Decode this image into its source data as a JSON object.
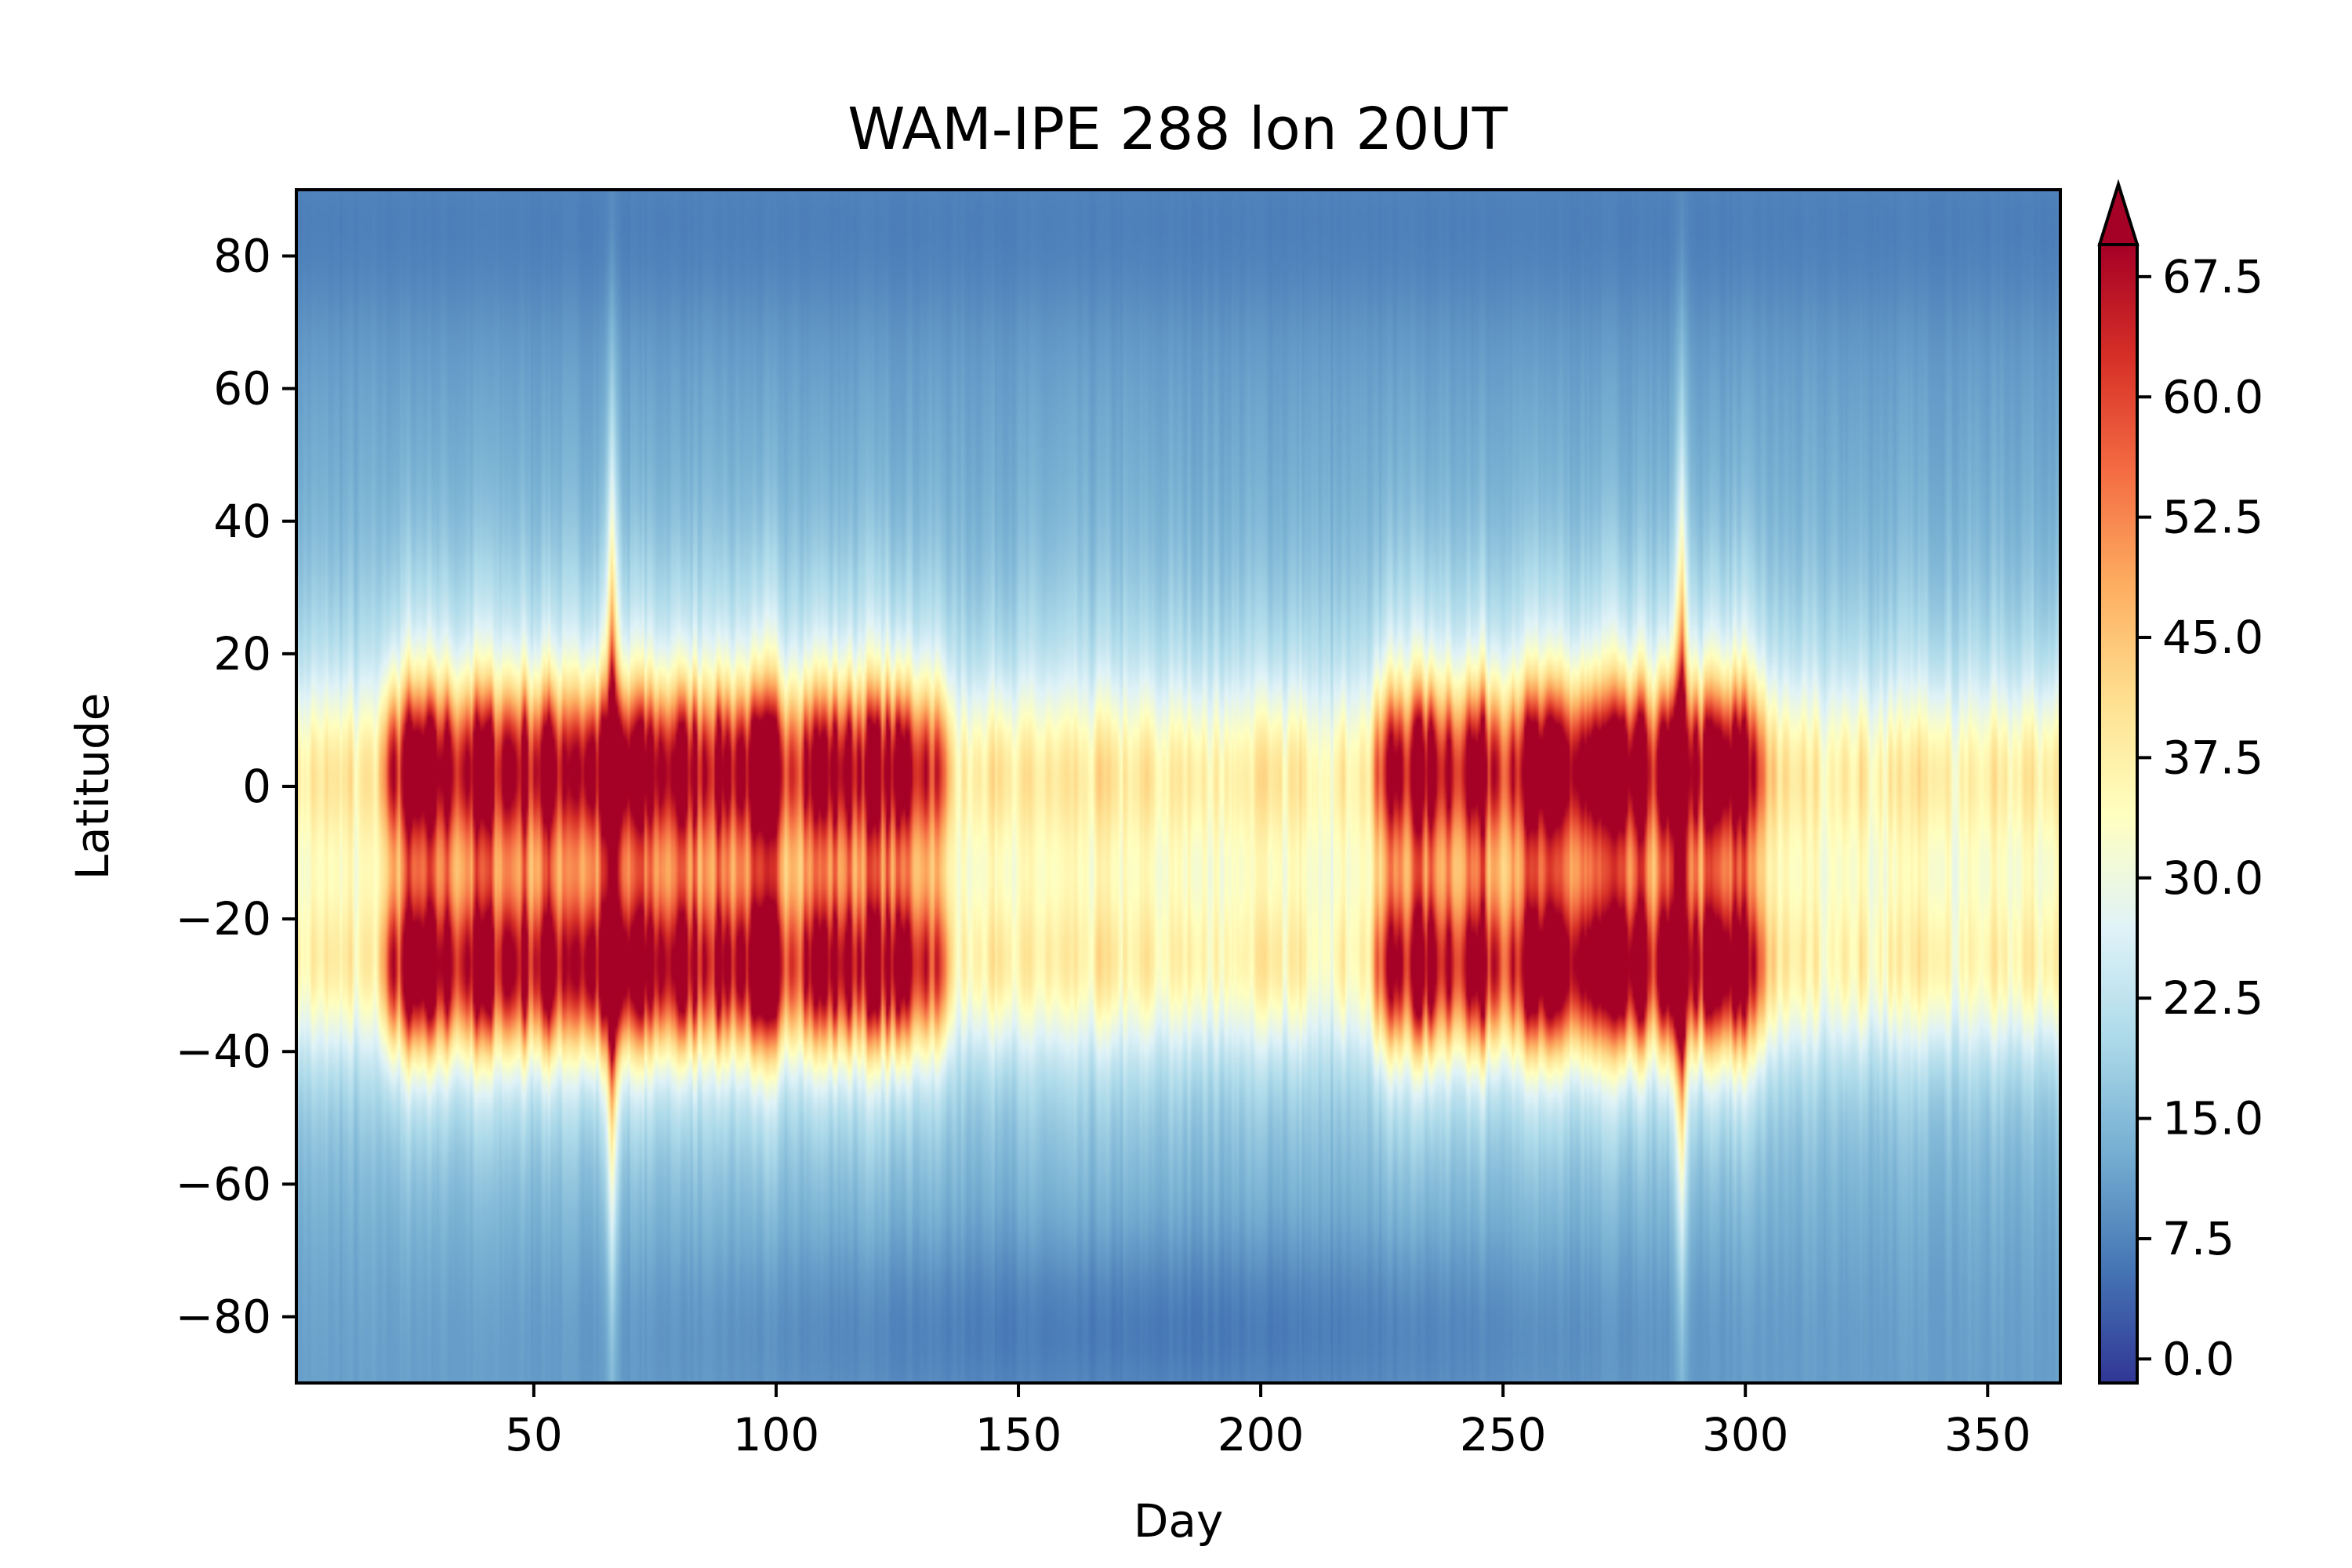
{
  "chart_data": {
    "type": "heatmap",
    "title": "WAM-IPE 288 lon 20UT",
    "xlabel": "Day",
    "ylabel": "Latitude",
    "xlim": [
      1,
      365
    ],
    "ylim": [
      -90,
      90
    ],
    "x_ticks": [
      50,
      100,
      150,
      200,
      250,
      300,
      350
    ],
    "x_tick_labels": [
      "50",
      "100",
      "150",
      "200",
      "250",
      "300",
      "350"
    ],
    "y_ticks": [
      80,
      60,
      40,
      20,
      0,
      -20,
      -40,
      -60,
      -80
    ],
    "y_tick_labels": [
      "80",
      "60",
      "40",
      "20",
      "0",
      "−20",
      "−40",
      "−60",
      "−80"
    ],
    "colormap": "RdYlBu_r",
    "colormap_stops": [
      "#313695",
      "#4575b4",
      "#74add1",
      "#abd9e9",
      "#e0f3f8",
      "#ffffbf",
      "#fee090",
      "#fdae61",
      "#f46d43",
      "#d73027",
      "#a50026"
    ],
    "colorbar": {
      "min": 0.0,
      "max": 67.5,
      "extend": "max",
      "extend_color": "#a50026",
      "ticks": [
        0.0,
        7.5,
        15.0,
        22.5,
        30.0,
        37.5,
        45.0,
        52.5,
        60.0,
        67.5
      ],
      "tick_labels": [
        "0.0",
        "7.5",
        "15.0",
        "22.5",
        "30.0",
        "37.5",
        "45.0",
        "52.5",
        "60.0",
        "67.5"
      ]
    },
    "structure": {
      "crest_latitudes": [
        3,
        -28
      ],
      "trough_latitude": -12,
      "background_value": 12,
      "active_periods_days": [
        [
          15,
          140
        ],
        [
          220,
          310
        ]
      ],
      "spike_days": [
        66,
        287
      ]
    }
  }
}
